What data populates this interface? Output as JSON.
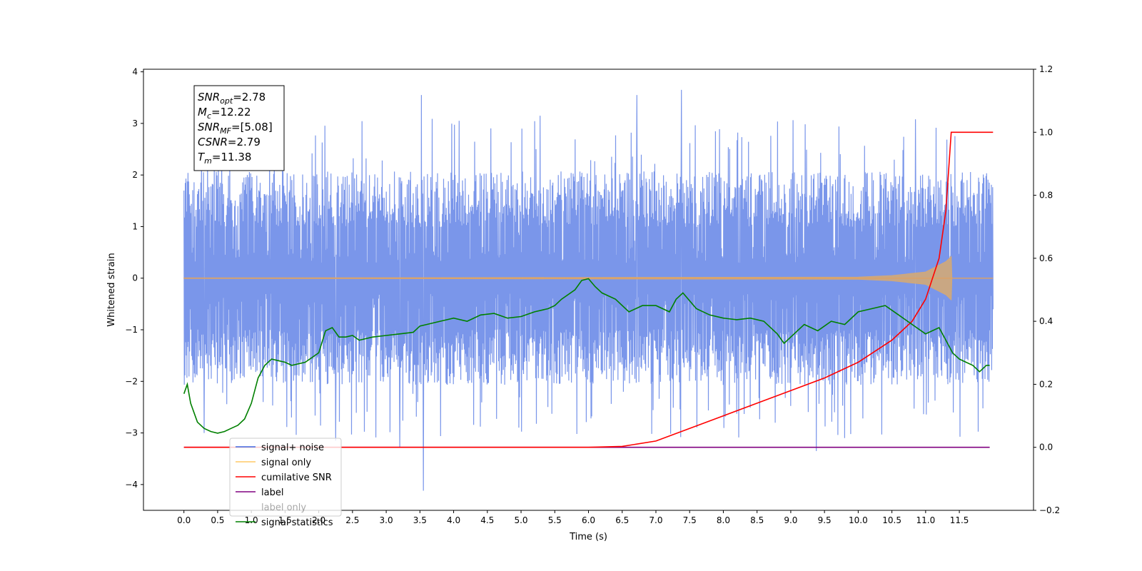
{
  "chart_data": {
    "type": "line",
    "title": "",
    "xlabel": "Time (s)",
    "ylabel": "Whitened strain",
    "xlim": [
      -0.6,
      12.6
    ],
    "ylim": [
      -4.5,
      4.05
    ],
    "ylim_right": [
      -0.2,
      1.2
    ],
    "xticks": [
      0.0,
      0.5,
      1.0,
      1.5,
      2.0,
      2.5,
      3.0,
      3.5,
      4.0,
      4.5,
      5.0,
      5.5,
      6.0,
      6.5,
      7.0,
      7.5,
      8.0,
      8.5,
      9.0,
      9.5,
      10.0,
      10.5,
      11.0,
      11.5
    ],
    "xtick_labels": [
      "0.0",
      "0.5",
      "1.0",
      "1.5",
      "2.0",
      "2.5",
      "3.0",
      "3.5",
      "4.0",
      "4.5",
      "5.0",
      "5.5",
      "6.0",
      "6.5",
      "7.0",
      "7.5",
      "8.0",
      "8.5",
      "9.0",
      "9.5",
      "10.0",
      "10.5",
      "11.0",
      "11.5"
    ],
    "yticks_left": [
      4,
      3,
      2,
      1,
      0,
      -1,
      -2,
      -3,
      -4
    ],
    "ytick_labels_left": [
      "4",
      "3",
      "2",
      "1",
      "0",
      "−1",
      "−2",
      "−3",
      "−4"
    ],
    "yticks_right": [
      1.2,
      1.0,
      0.8,
      0.6,
      0.4,
      0.2,
      0.0,
      -0.2
    ],
    "ytick_labels_right": [
      "1.2",
      "1.0",
      "0.8",
      "0.6",
      "0.4",
      "0.2",
      "0.0",
      "−0.2"
    ],
    "grid": false,
    "legend_position": "lower-left",
    "series": [
      {
        "name": "signal+ noise",
        "axis": "left",
        "color": "#4169e1",
        "x_range": [
          0.0,
          12.0
        ],
        "envelope_upper_typical": 1.8,
        "envelope_lower_typical": -1.8,
        "peaks": [
          [
            3.52,
            3.55
          ],
          [
            6.72,
            3.55
          ],
          [
            7.38,
            3.65
          ],
          [
            4.08,
            3.05
          ],
          [
            5.28,
            3.15
          ],
          [
            10.85,
            3.08
          ],
          [
            3.55,
            -4.12
          ],
          [
            3.2,
            -3.28
          ],
          [
            9.38,
            -3.35
          ],
          [
            7.37,
            -3.08
          ],
          [
            0.3,
            -3.0
          ],
          [
            2.25,
            -3.15
          ],
          [
            9.8,
            -3.1
          ]
        ]
      },
      {
        "name": "signal only",
        "axis": "left",
        "color": "#ffa500",
        "x": [
          0.0,
          10.0,
          10.5,
          11.0,
          11.3,
          11.38,
          11.39,
          12.0
        ],
        "envelope": [
          0.005,
          0.02,
          0.05,
          0.12,
          0.32,
          0.42,
          0.0,
          0.0
        ]
      },
      {
        "name": "cumilative SNR",
        "axis": "right",
        "color": "#ff0000",
        "x": [
          0.0,
          6.0,
          6.5,
          7.0,
          7.5,
          8.0,
          8.5,
          9.0,
          9.5,
          10.0,
          10.5,
          10.8,
          11.0,
          11.2,
          11.3,
          11.38,
          11.4,
          12.0
        ],
        "y": [
          0.0,
          0.0,
          0.003,
          0.02,
          0.06,
          0.1,
          0.14,
          0.18,
          0.22,
          0.27,
          0.34,
          0.4,
          0.47,
          0.6,
          0.75,
          1.0,
          1.0,
          1.0
        ]
      },
      {
        "name": "label",
        "axis": "right",
        "color": "#800080",
        "x": [
          0.0,
          11.95
        ],
        "y": [
          0.0,
          0.0
        ]
      },
      {
        "name": "label only",
        "axis": "right",
        "color": "#000000",
        "x": [],
        "y": []
      },
      {
        "name": "signal statistics",
        "axis": "right",
        "color": "#008000",
        "x": [
          0.0,
          0.05,
          0.1,
          0.2,
          0.3,
          0.4,
          0.5,
          0.6,
          0.7,
          0.8,
          0.9,
          1.0,
          1.1,
          1.2,
          1.3,
          1.4,
          1.5,
          1.6,
          1.8,
          2.0,
          2.1,
          2.2,
          2.3,
          2.4,
          2.5,
          2.6,
          2.7,
          2.8,
          3.0,
          3.2,
          3.4,
          3.5,
          3.6,
          3.7,
          3.8,
          4.0,
          4.2,
          4.4,
          4.6,
          4.8,
          5.0,
          5.2,
          5.4,
          5.5,
          5.6,
          5.8,
          5.9,
          6.0,
          6.1,
          6.2,
          6.4,
          6.6,
          6.8,
          7.0,
          7.2,
          7.3,
          7.4,
          7.6,
          7.8,
          8.0,
          8.2,
          8.4,
          8.6,
          8.8,
          8.9,
          9.0,
          9.2,
          9.4,
          9.6,
          9.8,
          10.0,
          10.2,
          10.4,
          10.6,
          10.8,
          11.0,
          11.1,
          11.2,
          11.3,
          11.4,
          11.5,
          11.6,
          11.7,
          11.8,
          11.9,
          11.95
        ],
        "y": [
          0.17,
          0.2,
          0.14,
          0.08,
          0.06,
          0.05,
          0.045,
          0.05,
          0.06,
          0.07,
          0.09,
          0.14,
          0.22,
          0.26,
          0.28,
          0.275,
          0.27,
          0.26,
          0.27,
          0.3,
          0.37,
          0.38,
          0.35,
          0.35,
          0.355,
          0.34,
          0.345,
          0.35,
          0.355,
          0.36,
          0.365,
          0.385,
          0.39,
          0.395,
          0.4,
          0.41,
          0.4,
          0.42,
          0.425,
          0.41,
          0.415,
          0.43,
          0.44,
          0.45,
          0.47,
          0.5,
          0.53,
          0.535,
          0.51,
          0.49,
          0.47,
          0.43,
          0.45,
          0.45,
          0.43,
          0.47,
          0.49,
          0.44,
          0.42,
          0.41,
          0.405,
          0.41,
          0.4,
          0.36,
          0.33,
          0.35,
          0.39,
          0.37,
          0.4,
          0.39,
          0.43,
          0.44,
          0.45,
          0.42,
          0.39,
          0.36,
          0.37,
          0.38,
          0.34,
          0.3,
          0.28,
          0.27,
          0.26,
          0.24,
          0.26,
          0.26
        ]
      }
    ],
    "annotation_box": {
      "lines": [
        {
          "base": "SNR",
          "sub": "opt",
          "value": "=2.78"
        },
        {
          "base": "M",
          "sub": "c",
          "value": "=12.22"
        },
        {
          "base": "SNR",
          "sub": "MF",
          "value": "=[5.08]"
        },
        {
          "base": "CSNR",
          "sub": "",
          "value": "=2.79"
        },
        {
          "base": "T",
          "sub": "m",
          "value": "=11.38"
        }
      ]
    }
  }
}
